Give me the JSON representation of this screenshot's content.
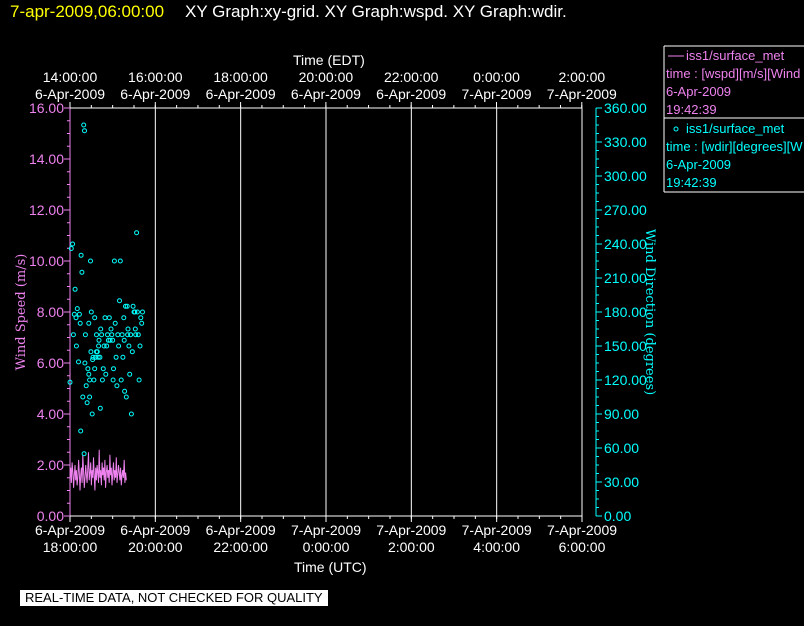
{
  "header": {
    "date_text": "7-apr-2009,06:00:00",
    "graphs_text": "XY Graph:xy-grid.  XY Graph:wspd.  XY Graph:wdir."
  },
  "footer": {
    "qc_note": "REAL-TIME DATA, NOT CHECKED FOR QUALITY"
  },
  "legend": [
    {
      "marker": "line",
      "name": "iss1/surface_met",
      "line2": "time : [wspd][m/s][Wind",
      "line3": "6-Apr-2009",
      "line4": "19:42:39",
      "color": "#ee82ee"
    },
    {
      "marker": "circle",
      "name": "iss1/surface_met",
      "line2": "time : [wdir][degrees][W",
      "line3": "6-Apr-2009",
      "line4": "19:42:39",
      "color": "#00ffff"
    }
  ],
  "chart_data": {
    "type": "line",
    "top_axis": {
      "label": "Time (EDT)",
      "ticks": [
        [
          "14:00:00",
          "6-Apr-2009"
        ],
        [
          "16:00:00",
          "6-Apr-2009"
        ],
        [
          "18:00:00",
          "6-Apr-2009"
        ],
        [
          "20:00:00",
          "6-Apr-2009"
        ],
        [
          "22:00:00",
          "6-Apr-2009"
        ],
        [
          "0:00:00",
          "7-Apr-2009"
        ],
        [
          "2:00:00",
          "7-Apr-2009"
        ]
      ]
    },
    "bottom_axis": {
      "label": "Time (UTC)",
      "ticks": [
        [
          "6-Apr-2009",
          "18:00:00"
        ],
        [
          "6-Apr-2009",
          "20:00:00"
        ],
        [
          "6-Apr-2009",
          "22:00:00"
        ],
        [
          "7-Apr-2009",
          "0:00:00"
        ],
        [
          "7-Apr-2009",
          "2:00:00"
        ],
        [
          "7-Apr-2009",
          "4:00:00"
        ],
        [
          "7-Apr-2009",
          "6:00:00"
        ]
      ],
      "xlim_hours_utc": [
        18,
        30
      ]
    },
    "left_axis": {
      "label": "Wind Speed (m/s)",
      "ylim": [
        0,
        16
      ],
      "ticks": [
        "0.00",
        "2.00",
        "4.00",
        "6.00",
        "8.00",
        "10.00",
        "12.00",
        "14.00",
        "16.00"
      ],
      "color": "#ee82ee"
    },
    "right_axis": {
      "label": "Wind Direction (degrees)",
      "ylim": [
        0,
        360
      ],
      "ticks": [
        "0.00",
        "30.00",
        "60.00",
        "90.00",
        "120.00",
        "150.00",
        "180.00",
        "210.00",
        "240.00",
        "270.00",
        "300.00",
        "330.00",
        "360.00"
      ],
      "color": "#00ffff"
    },
    "grid": true,
    "series": [
      {
        "name": "iss1/surface_met",
        "kind": "line",
        "color": "#ee82ee",
        "x_start": 18.0,
        "x_step": 0.0167,
        "values": [
          1.5,
          1.9,
          1.3,
          2.1,
          1.7,
          1.1,
          1.6,
          2.0,
          1.4,
          1.8,
          1.2,
          1.5,
          2.2,
          1.7,
          1.0,
          1.6,
          1.9,
          1.3,
          2.4,
          1.8,
          1.1,
          1.5,
          2.0,
          1.6,
          1.3,
          1.9,
          2.5,
          1.4,
          1.7,
          2.1,
          1.2,
          1.8,
          1.5,
          2.3,
          1.6,
          1.0,
          1.9,
          1.4,
          2.0,
          1.7,
          1.3,
          2.6,
          1.5,
          1.8,
          1.2,
          2.1,
          1.6,
          1.9,
          1.4,
          2.2,
          1.1,
          1.7,
          2.0,
          1.5,
          1.8,
          1.3,
          2.4,
          1.6,
          1.9,
          1.2,
          1.7,
          2.1,
          1.4,
          1.8,
          1.5,
          2.3,
          1.3,
          1.6,
          2.0,
          1.7,
          1.4,
          1.9,
          1.2,
          1.6,
          1.8,
          1.5,
          2.2,
          1.3,
          1.7,
          1.4
        ]
      },
      {
        "name": "iss1/surface_met",
        "kind": "scatter",
        "color": "#00ffff",
        "x": [
          18.0,
          18.03,
          18.06,
          18.08,
          18.1,
          18.12,
          18.14,
          18.15,
          18.17,
          18.2,
          18.22,
          18.24,
          18.26,
          18.28,
          18.3,
          18.32,
          18.34,
          18.36,
          18.38,
          18.4,
          18.42,
          18.44,
          18.46,
          18.48,
          18.5,
          18.52,
          18.54,
          18.56,
          18.58,
          18.6,
          18.62,
          18.64,
          18.66,
          18.68,
          18.7,
          18.72,
          18.74,
          18.76,
          18.78,
          18.8,
          18.82,
          18.84,
          18.86,
          18.88,
          18.9,
          18.92,
          18.94,
          18.96,
          18.98,
          19.0,
          19.02,
          19.04,
          19.06,
          19.08,
          19.1,
          19.12,
          19.14,
          19.16,
          19.18,
          19.2,
          19.22,
          19.24,
          19.26,
          19.28,
          19.3,
          19.32,
          19.34,
          19.36,
          19.38,
          19.4,
          19.42,
          19.44,
          19.46,
          19.48,
          19.5,
          19.52,
          19.54,
          19.56,
          19.58,
          19.6,
          19.62,
          19.64,
          19.66,
          19.68,
          19.7,
          18.35,
          18.46,
          18.53,
          18.62,
          18.67,
          18.71,
          18.58,
          18.44,
          18.49,
          19.01,
          19.27,
          19.35,
          19.53,
          18.25,
          18.33
        ],
        "y": [
          118,
          236,
          240,
          160,
          178,
          200,
          175,
          150,
          183,
          136,
          178,
          170,
          230,
          215,
          105,
          345,
          340,
          160,
          115,
          100,
          130,
          125,
          105,
          225,
          180,
          90,
          140,
          120,
          130,
          140,
          160,
          145,
          140,
          155,
          140,
          165,
          160,
          120,
          130,
          150,
          175,
          125,
          150,
          160,
          155,
          175,
          155,
          165,
          160,
          155,
          130,
          225,
          170,
          140,
          115,
          160,
          150,
          190,
          225,
          120,
          160,
          140,
          175,
          110,
          185,
          105,
          185,
          165,
          150,
          125,
          160,
          90,
          145,
          185,
          180,
          180,
          160,
          250,
          180,
          160,
          120,
          150,
          175,
          170,
          180,
          135,
          120,
          138,
          145,
          150,
          95,
          175,
          170,
          145,
          120,
          155,
          160,
          165,
          75,
          55
        ]
      }
    ]
  }
}
